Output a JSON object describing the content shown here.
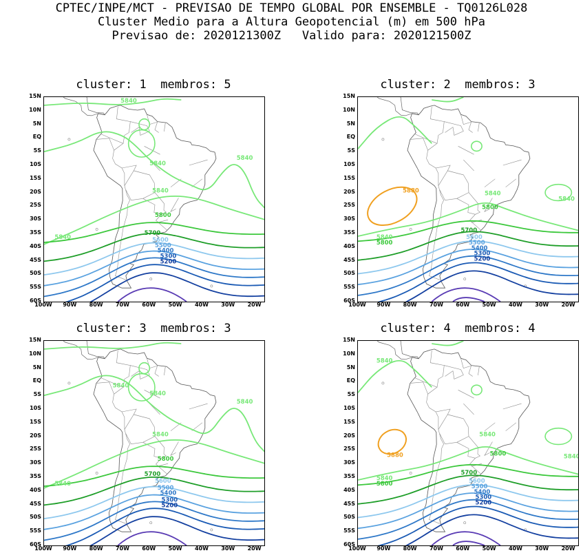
{
  "header": {
    "line1": "CPTEC/INPE/MCT - PREVISAO DE TEMPO GLOBAL POR ENSEMBLE - TQ0126L028",
    "line2": "Cluster Medio para a Altura Geopotencial (m) em 500 hPa",
    "line3": "Previsao de: 2020121300Z   Valido para: 2020121500Z"
  },
  "axes": {
    "lat_labels": [
      "15N",
      "10N",
      "5N",
      "EQ",
      "5S",
      "10S",
      "15S",
      "20S",
      "25S",
      "30S",
      "35S",
      "40S",
      "45S",
      "50S",
      "55S",
      "60S"
    ],
    "lon_labels": [
      "100W",
      "90W",
      "80W",
      "70W",
      "60W",
      "50W",
      "40W",
      "30W",
      "20W"
    ]
  },
  "colors": {
    "c5840": "#78e878",
    "c5800": "#3cc83c",
    "c5700": "#1e9e28",
    "c5600": "#8ec8ee",
    "c5500": "#5aa2e0",
    "c5400": "#2e78c8",
    "c5300": "#1a5ab4",
    "c5200": "#1440a0",
    "c5100": "#5a3cb4",
    "c5880": "#f0a020"
  },
  "panels": [
    {
      "title": "cluster: 1  membros: 5",
      "labels": [
        "5840",
        "5840",
        "5840",
        "5840",
        "5840",
        "5800",
        "5700",
        "5600",
        "5500",
        "5400",
        "5300",
        "5200"
      ]
    },
    {
      "title": "cluster: 2  membros: 3",
      "labels": [
        "5880",
        "5840",
        "5840",
        "5840",
        "5800",
        "5800",
        "5700",
        "5600",
        "5500",
        "5400",
        "5300",
        "5200"
      ]
    },
    {
      "title": "cluster: 3  membros: 3",
      "labels": [
        "5840",
        "5840",
        "5840",
        "5840",
        "5840",
        "5800",
        "5700",
        "5600",
        "5500",
        "5400",
        "5300",
        "5200"
      ]
    },
    {
      "title": "cluster: 4  membros: 4",
      "labels": [
        "5840",
        "5880",
        "5840",
        "5840",
        "5840",
        "5800",
        "5800",
        "5700",
        "5600",
        "5500",
        "5400",
        "5300",
        "5200"
      ]
    }
  ]
}
